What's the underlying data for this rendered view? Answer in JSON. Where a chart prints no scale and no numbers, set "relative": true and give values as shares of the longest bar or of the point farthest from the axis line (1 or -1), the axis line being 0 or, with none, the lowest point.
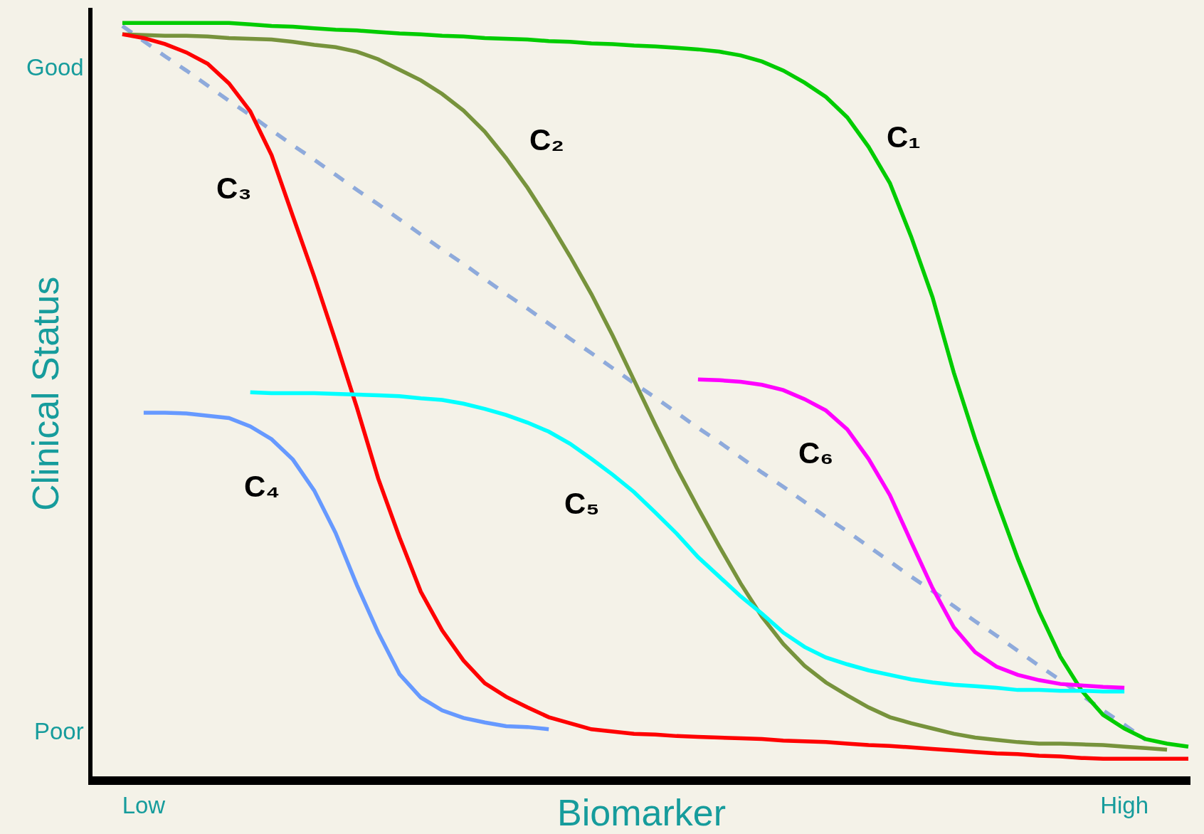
{
  "chart_data": {
    "type": "line",
    "xlabel": "Biomarker",
    "ylabel": "Clinical Status",
    "relative": true,
    "grid": false,
    "legend": false,
    "marker": "none",
    "categories": [
      null,
      "Low",
      null,
      null,
      null,
      null,
      null,
      null,
      null,
      null,
      null,
      null,
      null,
      null,
      null,
      null,
      null,
      null,
      null,
      null,
      null,
      null,
      null,
      null,
      null,
      null,
      null,
      null,
      null,
      null,
      null,
      null,
      null,
      null,
      null,
      null,
      null,
      null,
      null,
      null,
      null,
      null,
      null,
      null,
      null,
      null,
      null,
      "High",
      null,
      null,
      null
    ],
    "series": [
      {
        "color": "#8eaadb",
        "line_style": "dashed",
        "values": [
          0.996,
          0.976,
          0.956,
          0.937,
          0.917,
          0.897,
          0.878,
          0.858,
          0.838,
          0.819,
          0.799,
          0.779,
          0.76,
          0.74,
          0.72,
          0.7,
          0.681,
          0.661,
          0.641,
          0.622,
          0.602,
          0.582,
          0.563,
          0.543,
          0.523,
          0.504,
          0.484,
          0.464,
          0.445,
          0.425,
          0.405,
          0.386,
          0.366,
          0.346,
          0.327,
          0.307,
          0.287,
          0.267,
          0.248,
          0.228,
          0.208,
          0.189,
          0.169,
          0.149,
          0.13,
          0.11,
          0.09,
          0.071,
          0.051,
          null,
          null
        ]
      },
      {
        "color": "#00cc00",
        "values": [
          1.0,
          1.0,
          1.0,
          1.0,
          1.0,
          1.0,
          0.998,
          0.996,
          0.995,
          0.993,
          0.991,
          0.99,
          0.988,
          0.986,
          0.985,
          0.983,
          0.982,
          0.98,
          0.979,
          0.978,
          0.976,
          0.975,
          0.973,
          0.972,
          0.97,
          0.969,
          0.967,
          0.965,
          0.962,
          0.957,
          0.949,
          0.937,
          0.921,
          0.902,
          0.875,
          0.836,
          0.788,
          0.717,
          0.637,
          0.537,
          0.449,
          0.368,
          0.291,
          0.221,
          0.161,
          0.116,
          0.084,
          0.066,
          0.052,
          0.046,
          0.042
        ]
      },
      {
        "color": "#77933c",
        "values": [
          0.985,
          0.984,
          0.983,
          0.983,
          0.982,
          0.98,
          0.979,
          0.978,
          0.975,
          0.971,
          0.968,
          0.962,
          0.952,
          0.938,
          0.924,
          0.906,
          0.884,
          0.856,
          0.821,
          0.782,
          0.738,
          0.691,
          0.641,
          0.586,
          0.527,
          0.468,
          0.411,
          0.358,
          0.307,
          0.258,
          0.214,
          0.178,
          0.149,
          0.127,
          0.11,
          0.094,
          0.081,
          0.073,
          0.066,
          0.059,
          0.054,
          0.051,
          0.048,
          0.046,
          0.046,
          0.045,
          0.044,
          0.042,
          0.04,
          0.038,
          null
        ]
      },
      {
        "color": "#ff0000",
        "values": [
          0.985,
          0.98,
          0.972,
          0.961,
          0.946,
          0.92,
          0.883,
          0.825,
          0.744,
          0.664,
          0.579,
          0.491,
          0.397,
          0.319,
          0.247,
          0.196,
          0.156,
          0.126,
          0.108,
          0.094,
          0.081,
          0.073,
          0.065,
          0.062,
          0.059,
          0.058,
          0.056,
          0.055,
          0.054,
          0.053,
          0.052,
          0.05,
          0.049,
          0.048,
          0.046,
          0.044,
          0.043,
          0.041,
          0.039,
          0.037,
          0.035,
          0.033,
          0.032,
          0.03,
          0.029,
          0.027,
          0.026,
          0.026,
          0.026,
          0.026,
          0.026
        ]
      },
      {
        "color": "#6699ff",
        "values": [
          null,
          0.484,
          0.484,
          0.483,
          0.48,
          0.477,
          0.466,
          0.449,
          0.422,
          0.381,
          0.325,
          0.256,
          0.193,
          0.138,
          0.107,
          0.09,
          0.08,
          0.074,
          0.069,
          0.068,
          0.065,
          null,
          null,
          null,
          null,
          null,
          null,
          null,
          null,
          null,
          null,
          null,
          null,
          null,
          null,
          null,
          null,
          null,
          null,
          null,
          null,
          null,
          null,
          null,
          null,
          null,
          null,
          null,
          null,
          null,
          null
        ]
      },
      {
        "color": "#00ffff",
        "values": [
          null,
          null,
          null,
          null,
          null,
          null,
          0.511,
          0.51,
          0.51,
          0.51,
          0.509,
          0.508,
          0.507,
          0.506,
          0.503,
          0.501,
          0.496,
          0.489,
          0.481,
          0.471,
          0.459,
          0.443,
          0.423,
          0.402,
          0.379,
          0.352,
          0.324,
          0.293,
          0.267,
          0.241,
          0.218,
          0.193,
          0.174,
          0.16,
          0.151,
          0.143,
          0.137,
          0.131,
          0.127,
          0.124,
          0.122,
          0.12,
          0.117,
          0.117,
          0.116,
          0.116,
          0.115,
          0.115,
          null,
          null,
          null
        ]
      },
      {
        "color": "#ff00ff",
        "values": [
          null,
          null,
          null,
          null,
          null,
          null,
          null,
          null,
          null,
          null,
          null,
          null,
          null,
          null,
          null,
          null,
          null,
          null,
          null,
          null,
          null,
          null,
          null,
          null,
          null,
          null,
          null,
          0.528,
          0.527,
          0.525,
          0.521,
          0.514,
          0.502,
          0.487,
          0.462,
          0.423,
          0.375,
          0.313,
          0.252,
          0.2,
          0.167,
          0.148,
          0.137,
          0.13,
          0.125,
          0.123,
          0.121,
          0.12,
          null,
          null,
          null
        ]
      }
    ],
    "annotations": [
      "Good",
      "Poor",
      "C₁",
      "C₂",
      "C₃",
      "C₄",
      "C₅",
      "C₆"
    ]
  }
}
